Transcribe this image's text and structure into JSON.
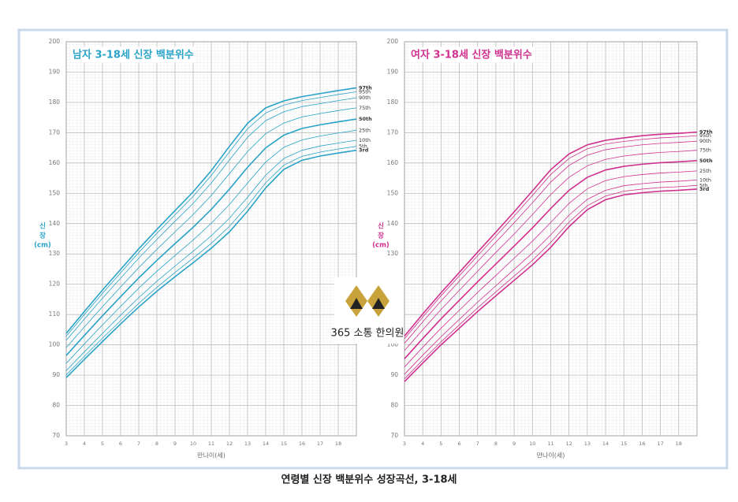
{
  "chart_data": [
    {
      "type": "line",
      "title": "남자 3-18세 신장 백분위수",
      "xlabel": "만나이(세)",
      "ylabel": [
        "신",
        "장",
        "(cm)"
      ],
      "color": "#2aa3c8",
      "grid": true,
      "x": [
        3,
        4,
        5,
        6,
        7,
        8,
        9,
        10,
        11,
        12,
        13,
        14,
        15,
        16,
        17,
        18,
        19
      ],
      "xlim": [
        3,
        19
      ],
      "xticks": [
        3,
        4,
        5,
        6,
        7,
        8,
        9,
        10,
        11,
        12,
        13,
        14,
        15,
        16,
        17,
        18
      ],
      "ylim": [
        70,
        200
      ],
      "yticks": [
        70,
        80,
        90,
        100,
        110,
        120,
        130,
        140,
        150,
        160,
        170,
        180,
        190,
        200
      ],
      "series": [
        {
          "name": "3rd",
          "values": [
            89.2,
            95.2,
            101.1,
            106.9,
            112.5,
            117.7,
            122.5,
            127.1,
            131.9,
            137.3,
            144.1,
            151.8,
            157.9,
            160.9,
            162.3,
            163.3,
            164.2
          ]
        },
        {
          "name": "5th",
          "values": [
            90.1,
            96.2,
            102.2,
            108.0,
            113.7,
            119.0,
            123.9,
            128.6,
            133.5,
            139.1,
            145.9,
            153.5,
            159.3,
            162.2,
            163.6,
            164.6,
            165.5
          ]
        },
        {
          "name": "10th",
          "values": [
            91.5,
            97.7,
            103.8,
            109.8,
            115.6,
            121.0,
            126.0,
            130.9,
            136.0,
            141.8,
            148.7,
            156.0,
            161.5,
            164.2,
            165.6,
            166.6,
            167.5
          ]
        },
        {
          "name": "25th",
          "values": [
            93.9,
            100.3,
            106.6,
            112.7,
            118.7,
            124.3,
            129.5,
            134.6,
            140.1,
            146.3,
            153.4,
            160.3,
            165.2,
            167.6,
            168.9,
            169.9,
            170.8
          ]
        },
        {
          "name": "50th",
          "values": [
            96.5,
            103.1,
            109.6,
            115.9,
            122.1,
            127.9,
            133.4,
            138.8,
            144.7,
            151.4,
            158.6,
            165.0,
            169.2,
            171.4,
            172.6,
            173.6,
            174.5
          ]
        },
        {
          "name": "75th",
          "values": [
            99.1,
            105.9,
            112.6,
            119.1,
            125.5,
            131.5,
            137.3,
            143.0,
            149.3,
            156.5,
            163.8,
            169.7,
            173.2,
            175.2,
            176.3,
            177.3,
            178.2
          ]
        },
        {
          "name": "90th",
          "values": [
            101.5,
            108.5,
            115.4,
            122.0,
            128.6,
            134.8,
            140.8,
            146.7,
            153.4,
            161.0,
            168.5,
            174.0,
            176.9,
            178.6,
            179.6,
            180.6,
            181.5
          ]
        },
        {
          "name": "95th",
          "values": [
            102.9,
            110.0,
            117.0,
            123.8,
            130.5,
            136.8,
            142.9,
            149.0,
            155.9,
            163.7,
            171.3,
            176.5,
            179.1,
            180.6,
            181.6,
            182.6,
            183.5
          ]
        },
        {
          "name": "97th",
          "values": [
            103.8,
            111.0,
            118.1,
            124.9,
            131.7,
            138.1,
            144.3,
            150.5,
            157.5,
            165.5,
            173.1,
            178.2,
            180.5,
            181.9,
            182.9,
            183.9,
            184.8
          ]
        }
      ]
    },
    {
      "type": "line",
      "title": "여자 3-18세 신장 백분위수",
      "xlabel": "만나이(세)",
      "ylabel": [
        "신",
        "장",
        "(cm)"
      ],
      "color": "#d0308f",
      "grid": true,
      "x": [
        3,
        4,
        5,
        6,
        7,
        8,
        9,
        10,
        11,
        12,
        13,
        14,
        15,
        16,
        17,
        18,
        19
      ],
      "xlim": [
        3,
        19
      ],
      "xticks": [
        3,
        4,
        5,
        6,
        7,
        8,
        9,
        10,
        11,
        12,
        13,
        14,
        15,
        16,
        17,
        18
      ],
      "ylim": [
        70,
        200
      ],
      "yticks": [
        70,
        80,
        90,
        100,
        110,
        120,
        130,
        140,
        150,
        160,
        170,
        180,
        190,
        200
      ],
      "series": [
        {
          "name": "3rd",
          "values": [
            87.9,
            94.0,
            100.0,
            105.5,
            111.0,
            116.2,
            121.3,
            126.4,
            132.2,
            139.0,
            144.6,
            147.9,
            149.5,
            150.2,
            150.7,
            151.0,
            151.4
          ]
        },
        {
          "name": "5th",
          "values": [
            88.8,
            95.0,
            101.0,
            106.6,
            112.2,
            117.5,
            122.7,
            127.9,
            133.8,
            140.5,
            145.9,
            149.1,
            150.7,
            151.4,
            151.9,
            152.2,
            152.6
          ]
        },
        {
          "name": "10th",
          "values": [
            90.3,
            96.6,
            102.7,
            108.4,
            114.1,
            119.5,
            124.9,
            130.3,
            136.3,
            142.8,
            148.0,
            151.0,
            152.5,
            153.2,
            153.7,
            154.0,
            154.4
          ]
        },
        {
          "name": "25th",
          "values": [
            92.7,
            99.2,
            105.5,
            111.4,
            117.3,
            122.9,
            128.6,
            134.2,
            140.4,
            146.7,
            151.5,
            154.2,
            155.5,
            156.2,
            156.7,
            157.0,
            157.4
          ]
        },
        {
          "name": "50th",
          "values": [
            95.4,
            102.1,
            108.6,
            114.7,
            120.8,
            126.7,
            132.6,
            138.6,
            145.0,
            151.0,
            155.3,
            157.7,
            158.9,
            159.6,
            160.1,
            160.4,
            160.8
          ]
        },
        {
          "name": "75th",
          "values": [
            98.1,
            105.0,
            111.7,
            118.0,
            124.3,
            130.5,
            136.6,
            143.0,
            149.6,
            155.3,
            159.1,
            161.2,
            162.3,
            163.0,
            163.5,
            163.8,
            164.2
          ]
        },
        {
          "name": "90th",
          "values": [
            100.5,
            107.6,
            114.5,
            121.0,
            127.5,
            133.9,
            140.3,
            146.9,
            153.7,
            159.2,
            162.6,
            164.4,
            165.3,
            166.0,
            166.5,
            166.8,
            167.2
          ]
        },
        {
          "name": "95th",
          "values": [
            102.0,
            109.2,
            116.2,
            122.8,
            129.4,
            135.9,
            142.5,
            149.3,
            156.2,
            161.5,
            164.7,
            166.3,
            167.1,
            167.8,
            168.3,
            168.6,
            169.0
          ]
        },
        {
          "name": "97th",
          "values": [
            102.9,
            110.2,
            117.2,
            123.9,
            130.6,
            137.2,
            143.9,
            150.8,
            157.8,
            163.0,
            166.0,
            167.5,
            168.3,
            169.0,
            169.5,
            169.8,
            170.2
          ]
        }
      ]
    }
  ],
  "logo": {
    "text": "365 소통 한의원"
  },
  "caption": "연령별 신장 백분위수 성장곡선, 3-18세"
}
